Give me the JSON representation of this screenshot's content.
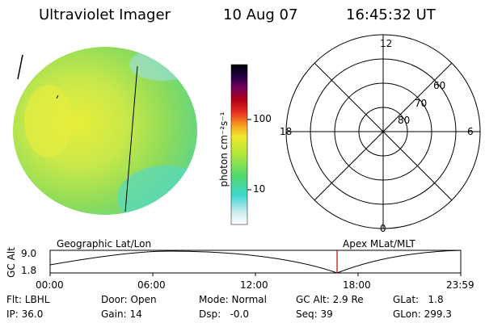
{
  "header": {
    "instrument": "Ultraviolet Imager",
    "date": "10 Aug 07",
    "time": "16:45:32 UT"
  },
  "colorbar": {
    "label": "photon cm⁻²s⁻¹",
    "ticks": [
      "100",
      "10"
    ]
  },
  "polar_plot": {
    "hour_labels": {
      "top": "12",
      "left": "18",
      "right": "6",
      "bottom": "0"
    },
    "lat_labels": [
      "60",
      "70",
      "80"
    ]
  },
  "orbit_panel": {
    "left_title": "Geographic Lat/Lon",
    "right_title": "Apex MLat/MLT",
    "y_axis_label": "GC Alt",
    "y_ticks": [
      "9.0",
      "1.8"
    ],
    "x_ticks": [
      "00:00",
      "06:00",
      "12:00",
      "18:00",
      "23:59"
    ],
    "marker_color": "#cc0000"
  },
  "status": {
    "flt": "Flt: LBHL",
    "ip": "IP: 36.0",
    "door": "Door: Open",
    "gain": "Gain: 14",
    "mode": "Mode: Normal",
    "dsp": "Dsp:   -0.0",
    "gc_alt": "GC Alt: 2.9 Re",
    "seq": "Seq: 39",
    "glat": "GLat:   1.8",
    "glon": "GLon: 299.3"
  }
}
